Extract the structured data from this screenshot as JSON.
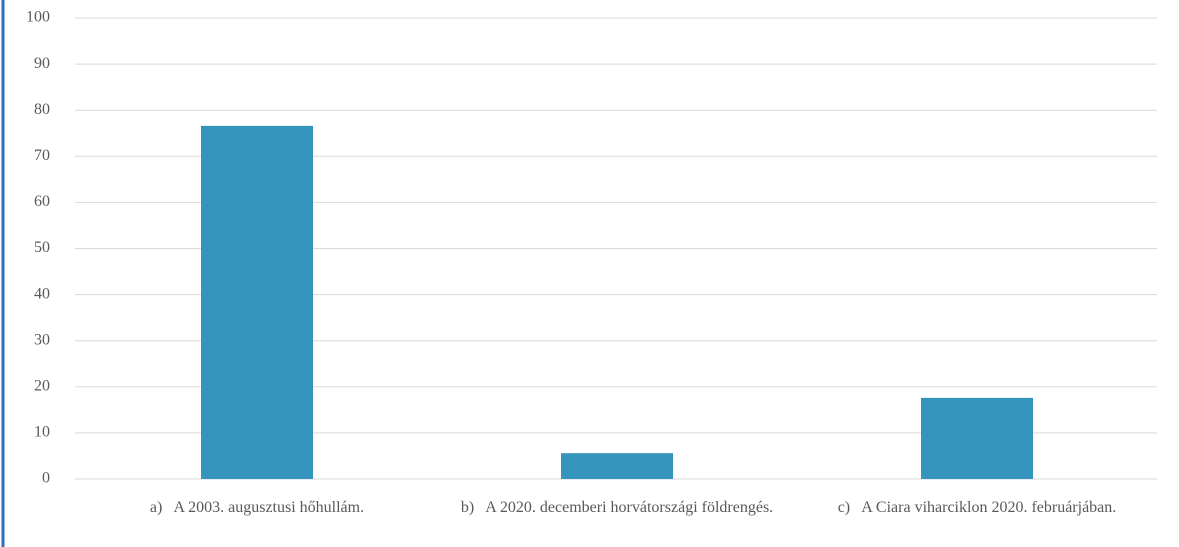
{
  "chart_data": {
    "type": "bar",
    "categories": [
      "a)   A 2003. augusztusi hőhullám.",
      "b)   A 2020. decemberi horvátországi földrengés.",
      "c)   A Ciara viharciklon 2020. februárjában."
    ],
    "values": [
      76.6,
      5.6,
      17.6
    ],
    "color": "#3594bb",
    "ylim": [
      0,
      100
    ],
    "yticks": [
      0,
      10,
      20,
      30,
      40,
      50,
      60,
      70,
      80,
      90,
      100
    ],
    "grid": true
  }
}
